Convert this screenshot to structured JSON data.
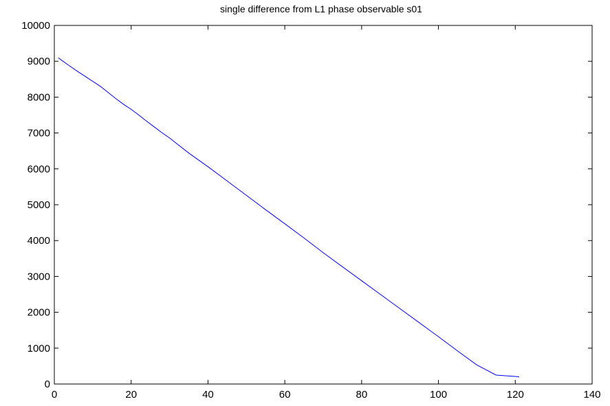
{
  "chart_data": {
    "type": "line",
    "title": "single difference from L1 phase observable s01",
    "xlabel": "",
    "ylabel": "",
    "xlim": [
      0,
      140
    ],
    "ylim": [
      0,
      10000
    ],
    "x_ticks": [
      0,
      20,
      40,
      60,
      80,
      100,
      120,
      140
    ],
    "y_ticks": [
      0,
      1000,
      2000,
      3000,
      4000,
      5000,
      6000,
      7000,
      8000,
      9000,
      10000
    ],
    "grid": false,
    "series_color": "#0000ff",
    "series": [
      {
        "x": [
          1,
          2,
          4,
          6,
          8,
          10,
          12,
          14,
          16,
          18,
          20,
          22,
          24,
          26,
          28,
          30,
          35,
          40,
          45,
          50,
          55,
          60,
          65,
          70,
          75,
          80,
          85,
          90,
          95,
          100,
          105,
          110,
          115,
          120,
          121
        ],
        "y": [
          9100,
          9020,
          8870,
          8720,
          8580,
          8440,
          8300,
          8130,
          7960,
          7800,
          7660,
          7500,
          7330,
          7170,
          7010,
          6860,
          6440,
          6060,
          5660,
          5260,
          4860,
          4470,
          4070,
          3660,
          3270,
          2880,
          2490,
          2100,
          1710,
          1320,
          920,
          530,
          250,
          210,
          200
        ]
      }
    ]
  }
}
